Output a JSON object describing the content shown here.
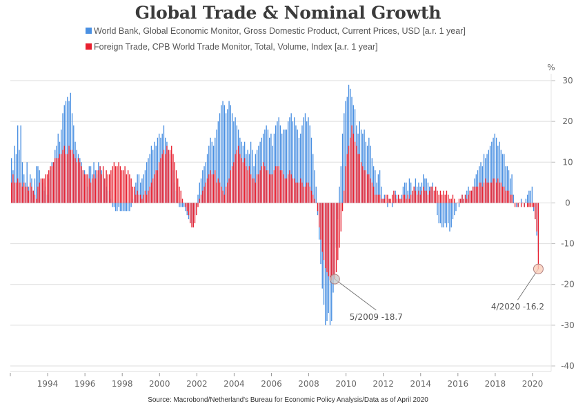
{
  "chart_data": {
    "type": "bar",
    "title": "Global Trade & Nominal Growth",
    "ylabel": "%",
    "xlabel": "",
    "ylim": [
      -40,
      30
    ],
    "yticks": [
      30,
      20,
      10,
      0,
      -10,
      -20,
      -30,
      -40
    ],
    "xlim": [
      1992,
      2021
    ],
    "xticks": [
      1994,
      1996,
      1998,
      2000,
      2002,
      2004,
      2006,
      2008,
      2010,
      2012,
      2014,
      2016,
      2018,
      2020
    ],
    "grid": true,
    "legend_position": "top",
    "x_start": "1992-01",
    "frequency": "monthly",
    "series": [
      {
        "name": "World Bank, Global Economic Monitor, Gross Domestic Product, Current Prices, USD [a.r. 1 year]",
        "color": "#4a90e2",
        "values": [
          11,
          8,
          14,
          12,
          19,
          13,
          19,
          10,
          7,
          5,
          10,
          4,
          7,
          6,
          3,
          6,
          9,
          9,
          8,
          6,
          5,
          3,
          4,
          2,
          6,
          8,
          10,
          10,
          13,
          14,
          17,
          15,
          18,
          22,
          24,
          25,
          26,
          25,
          27,
          22,
          19,
          15,
          13,
          12,
          11,
          10,
          8,
          8,
          6,
          4,
          9,
          9,
          7,
          10,
          8,
          7,
          10,
          9,
          8,
          7,
          6,
          4,
          3,
          3,
          1,
          -1,
          -1,
          -2,
          -2,
          -1,
          -2,
          -2,
          -2,
          -2,
          -2,
          -2,
          -2,
          -1,
          1,
          3,
          5,
          7,
          7,
          5,
          6,
          7,
          8,
          10,
          11,
          12,
          14,
          13,
          15,
          14,
          16,
          17,
          16,
          17,
          19,
          16,
          15,
          13,
          12,
          10,
          8,
          5,
          3,
          0,
          -1,
          -1,
          -1,
          -1,
          -2,
          -3,
          -4,
          -5,
          -5,
          -6,
          -3,
          -1,
          2,
          5,
          6,
          8,
          9,
          10,
          12,
          14,
          16,
          15,
          14,
          16,
          18,
          20,
          22,
          24,
          25,
          24,
          22,
          23,
          25,
          24,
          22,
          20,
          21,
          19,
          18,
          16,
          15,
          14,
          15,
          12,
          13,
          12,
          15,
          13,
          9,
          12,
          13,
          14,
          15,
          16,
          17,
          18,
          19,
          18,
          16,
          17,
          14,
          17,
          19,
          20,
          21,
          19,
          17,
          18,
          18,
          18,
          20,
          21,
          22,
          20,
          21,
          19,
          18,
          16,
          17,
          19,
          21,
          22,
          20,
          21,
          19,
          16,
          12,
          8,
          4,
          -3,
          -9,
          -15,
          -21,
          -25,
          -30,
          -29,
          -27,
          -30,
          -29,
          -22,
          -18,
          -11,
          -4,
          4,
          9,
          17,
          22,
          25,
          26,
          29,
          28,
          26,
          24,
          23,
          19,
          17,
          20,
          18,
          17,
          18,
          15,
          14,
          16,
          14,
          11,
          9,
          8,
          5,
          7,
          8,
          4,
          1,
          2,
          0,
          -1,
          1,
          0,
          -1,
          0,
          3,
          2,
          1,
          0,
          2,
          4,
          5,
          5,
          3,
          6,
          5,
          2,
          4,
          6,
          4,
          5,
          4,
          5,
          7,
          6,
          6,
          5,
          4,
          4,
          5,
          3,
          0,
          -3,
          -5,
          -5,
          -6,
          -6,
          -5,
          -6,
          -5,
          -7,
          -6,
          -4,
          -3,
          -2,
          0,
          -1,
          1,
          2,
          1,
          2,
          3,
          4,
          3,
          3,
          4,
          6,
          7,
          8,
          9,
          10,
          9,
          12,
          11,
          12,
          13,
          14,
          15,
          16,
          17,
          16,
          14,
          15,
          13,
          12,
          12,
          9,
          9,
          8,
          6,
          7,
          2,
          0,
          -1,
          -1,
          0,
          1,
          0,
          -1,
          1,
          2,
          3,
          3,
          4,
          -2,
          -4,
          -8,
          -12
        ]
      },
      {
        "name": "Foreign Trade, CPB World Trade Monitor, Total, Volume, Index [a.r. 1 year]",
        "color": "#e8202f",
        "values": [
          5,
          7,
          5,
          5,
          6,
          5,
          5,
          4,
          5,
          4,
          4,
          3,
          5,
          4,
          3,
          2,
          1,
          4,
          5,
          6,
          6,
          6,
          7,
          7,
          8,
          9,
          9,
          10,
          11,
          11,
          11,
          12,
          12,
          13,
          14,
          12,
          12,
          14,
          13,
          13,
          12,
          11,
          10,
          11,
          10,
          9,
          8,
          7,
          7,
          7,
          6,
          5,
          6,
          7,
          6,
          8,
          8,
          9,
          7,
          9,
          6,
          8,
          7,
          7,
          8,
          9,
          10,
          9,
          9,
          10,
          9,
          8,
          8,
          9,
          7,
          8,
          7,
          6,
          4,
          4,
          2,
          3,
          2,
          2,
          1,
          2,
          3,
          2,
          3,
          4,
          5,
          6,
          7,
          8,
          8,
          10,
          11,
          12,
          13,
          12,
          14,
          13,
          13,
          14,
          12,
          10,
          8,
          6,
          4,
          3,
          1,
          0,
          -1,
          -2,
          -3,
          -5,
          -6,
          -6,
          -5,
          -3,
          -1,
          1,
          2,
          3,
          4,
          5,
          6,
          7,
          8,
          7,
          7,
          8,
          5,
          6,
          5,
          4,
          3,
          2,
          4,
          5,
          6,
          8,
          9,
          10,
          12,
          13,
          14,
          12,
          11,
          10,
          11,
          9,
          8,
          9,
          7,
          6,
          6,
          5,
          7,
          7,
          8,
          9,
          10,
          9,
          8,
          8,
          7,
          7,
          7,
          8,
          9,
          9,
          9,
          8,
          8,
          7,
          6,
          6,
          7,
          8,
          7,
          6,
          6,
          5,
          5,
          5,
          6,
          5,
          4,
          4,
          5,
          5,
          4,
          3,
          2,
          1,
          0,
          -2,
          -6,
          -9,
          -12,
          -14,
          -16,
          -17,
          -18,
          -19,
          -19,
          -18,
          -18.7,
          -17,
          -14,
          -11,
          -7,
          -2,
          3,
          9,
          12,
          14,
          16,
          19,
          17,
          15,
          14,
          12,
          12,
          10,
          9,
          8,
          8,
          7,
          7,
          6,
          5,
          4,
          2,
          2,
          2,
          2,
          1,
          1,
          1,
          2,
          2,
          1,
          1,
          2,
          3,
          2,
          1,
          2,
          1,
          1,
          2,
          2,
          1,
          2,
          1,
          2,
          3,
          4,
          3,
          2,
          3,
          2,
          3,
          4,
          3,
          3,
          2,
          3,
          4,
          4,
          3,
          4,
          3,
          2,
          3,
          2,
          3,
          2,
          3,
          2,
          1,
          1,
          2,
          1,
          0,
          0,
          1,
          1,
          2,
          1,
          2,
          1,
          2,
          3,
          3,
          4,
          4,
          4,
          4,
          5,
          5,
          4,
          5,
          6,
          5,
          5,
          5,
          5,
          6,
          6,
          5,
          6,
          5,
          5,
          4,
          4,
          3,
          3,
          3,
          2,
          2,
          0,
          -1,
          0,
          -1,
          0,
          -1,
          0,
          -1,
          0,
          -1,
          -1,
          -1,
          -1,
          -1,
          -4,
          -7,
          -16.2
        ]
      }
    ],
    "annotations": [
      {
        "label": "5/2009 -18.7",
        "date": "2009-05",
        "value": -18.7,
        "series": 1
      },
      {
        "label": "4/2020 -16.2",
        "date": "2020-04",
        "value": -16.2,
        "series": 1
      }
    ],
    "source": "Source: Macrobond/Netherland's Bureau for Economic Policy Analysis/Data as of April 2020"
  }
}
